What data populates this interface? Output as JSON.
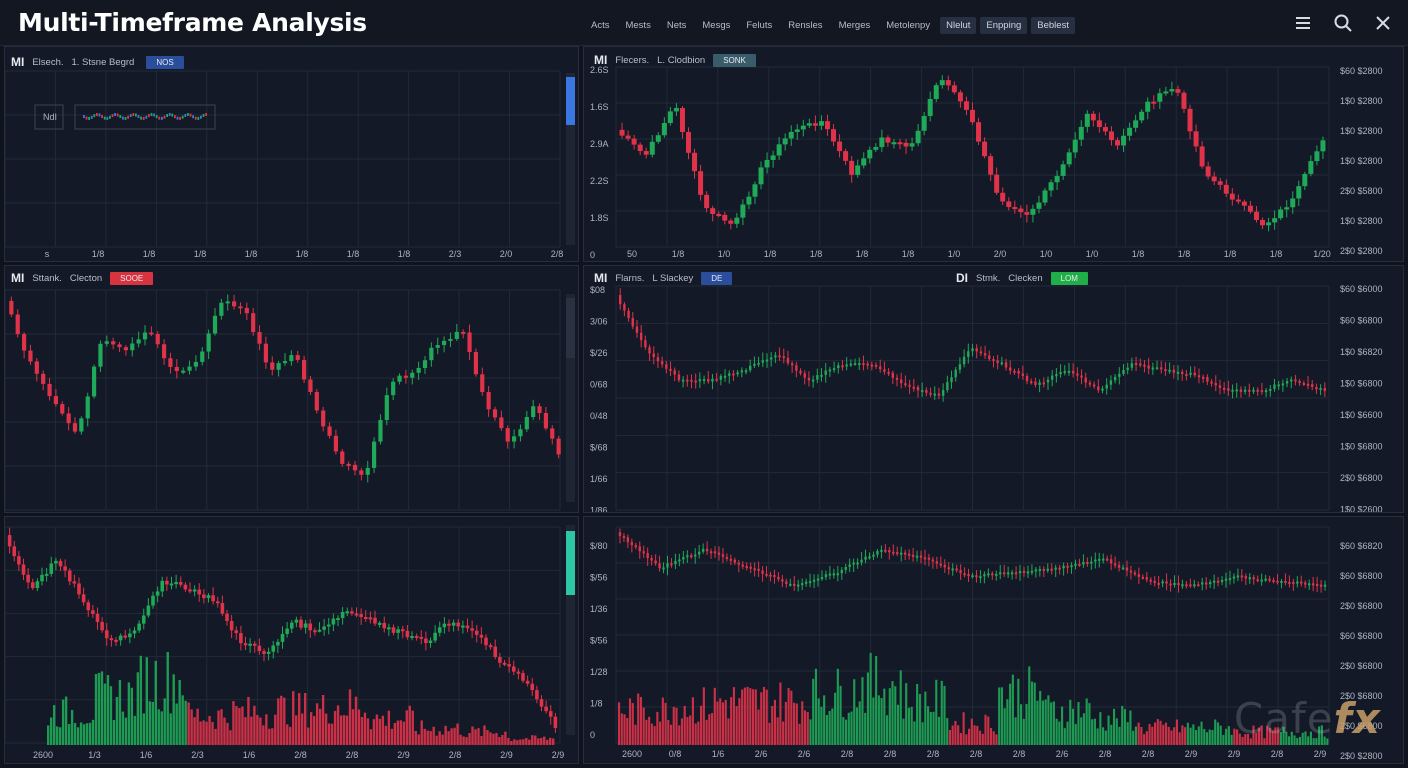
{
  "app": {
    "title": "Multi-Timeframe Analysis"
  },
  "toolbar": {
    "tabs": [
      {
        "label": "Acts",
        "boxed": false
      },
      {
        "label": "Mests",
        "boxed": false
      },
      {
        "label": "Nets",
        "boxed": false
      },
      {
        "label": "Mesgs",
        "boxed": false
      },
      {
        "label": "Feluts",
        "boxed": false
      },
      {
        "label": "Rensles",
        "boxed": false
      },
      {
        "label": "Merges",
        "boxed": false
      },
      {
        "label": "Metolenpy",
        "boxed": false
      },
      {
        "label": "Nlelut",
        "boxed": true
      },
      {
        "label": "Enpping",
        "boxed": true
      },
      {
        "label": "Beblest",
        "boxed": true
      }
    ],
    "icons": [
      "menu-icon",
      "search-icon",
      "close-icon"
    ]
  },
  "panels": {
    "p1": {
      "timeframe": "MI",
      "name": "Elsech.",
      "label": "1. Stsne Begrd",
      "badge": "NOS",
      "badge_color": "#2b4e9c",
      "legend_box": "NdI",
      "x_labels": [
        "s",
        "1/8",
        "1/8",
        "1/8",
        "1/8",
        "1/8",
        "1/8",
        "1/8",
        "2/3",
        "2/0",
        "2/8"
      ]
    },
    "p2": {
      "timeframe": "MI",
      "name": "Flecers.",
      "label": "L. Clodbion",
      "badge": "SONK",
      "badge_color": "#3a5b6a",
      "y_left": [
        "2.6S",
        "1.6S",
        "2.9A",
        "2.2S",
        "1.8S",
        "0"
      ],
      "y_right": [
        "$60 $2800",
        "1$0 $2800",
        "1$0 $2800",
        "1$0 $2800",
        "2$0 $5800",
        "1$0 $2800",
        "2$0 $2800"
      ],
      "x_labels": [
        "50",
        "1/8",
        "1/0",
        "1/8",
        "1/8",
        "1/8",
        "1/8",
        "1/0",
        "2/0",
        "1/0",
        "1/0",
        "1/8",
        "1/8",
        "1/8",
        "1/8",
        "1/20"
      ]
    },
    "p3": {
      "timeframe": "MI",
      "name": "Sttank.",
      "label": "Clecton",
      "badge": "SOOE",
      "badge_color": "#d8343f"
    },
    "p4": {
      "timeframe": "MI",
      "name": "Flarns.",
      "label": "L Slackey",
      "badge": "DE",
      "badge_color": "#2b4e9c",
      "timeframe2": "DI",
      "name2": "Stmk.",
      "label2": "Clecken",
      "badge2": "LOM",
      "badge2_color": "#1fae47",
      "y_left": [
        "$08",
        "3/06",
        "$/26",
        "0/68",
        "0/48",
        "$/68",
        "1/66",
        "1/86"
      ],
      "y_right": [
        "$60 $6000",
        "$60 $6800",
        "1$0 $6820",
        "1$0 $6800",
        "1$0 $6600",
        "1$0 $6800",
        "2$0 $6800",
        "1$0 $2600"
      ]
    },
    "p5": {
      "x_labels": [
        "2600",
        "1/3",
        "1/6",
        "2/3",
        "1/6",
        "2/8",
        "2/8",
        "2/9",
        "2/8",
        "2/9",
        "2/9"
      ]
    },
    "p6": {
      "y_left": [
        "$/80",
        "$/56",
        "1/36",
        "$/56",
        "1/28",
        "1/8",
        "0"
      ],
      "y_right": [
        "$60 $6820",
        "$60 $6800",
        "2$0 $6800",
        "$60 $6800",
        "2$0 $6800",
        "2$0 $6800",
        "2$0 $6800",
        "2$0 $2800"
      ],
      "x_labels": [
        "2600",
        "0/8",
        "1/6",
        "2/6",
        "2/6",
        "2/8",
        "2/8",
        "2/8",
        "2/8",
        "2/8",
        "2/6",
        "2/8",
        "2/8",
        "2/9",
        "2/9",
        "2/8",
        "2/9"
      ]
    }
  },
  "watermark": {
    "text": "Cafe",
    "accent": "fx"
  },
  "colors": {
    "bull": "#1faa59",
    "bear": "#e0334a",
    "bg": "#131926",
    "grid": "#222a38"
  }
}
